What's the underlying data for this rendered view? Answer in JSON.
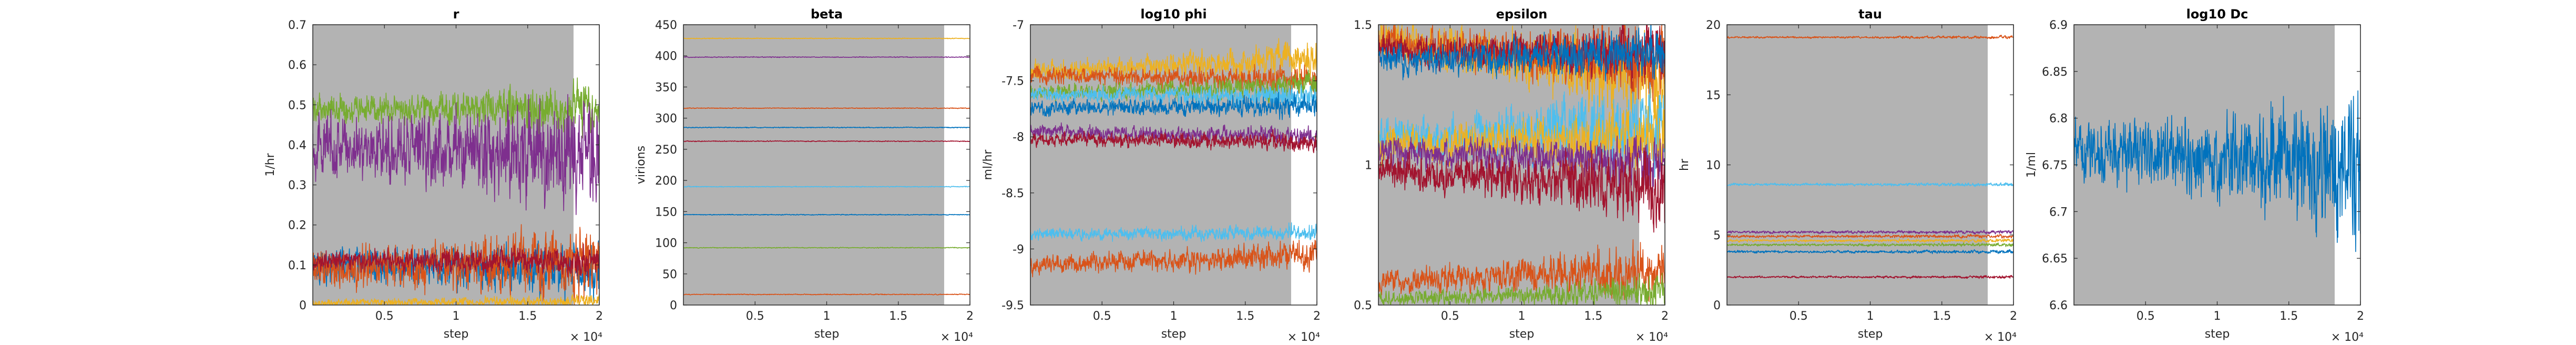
{
  "colors": {
    "shade": "#b3b3b3",
    "palette": [
      "#0072bd",
      "#d95319",
      "#edb120",
      "#7e2f8e",
      "#77ac30",
      "#4dbeee",
      "#a2142f"
    ]
  },
  "chart_data": [
    {
      "type": "line",
      "title": "r",
      "xlabel": "step",
      "ylabel": "1/hr",
      "x_multiplier": "× 10⁴",
      "xlim": [
        0,
        20000
      ],
      "ylim": [
        0,
        0.7
      ],
      "xticks": [
        5000,
        10000,
        15000,
        20000
      ],
      "xtick_labels": [
        "0.5",
        "1",
        "1.5",
        "2"
      ],
      "yticks": [
        0,
        0.1,
        0.2,
        0.3,
        0.4,
        0.5,
        0.6,
        0.7
      ],
      "ytick_labels": [
        "0",
        "0.1",
        "0.2",
        "0.3",
        "0.4",
        "0.5",
        "0.6",
        "0.7"
      ],
      "shaded_region": [
        0,
        18200
      ],
      "series": [
        {
          "color_index": 4,
          "start": 0.49,
          "end": 0.49,
          "noise": 0.02,
          "noise_growth": 2.0
        },
        {
          "color_index": 3,
          "start": 0.4,
          "end": 0.37,
          "noise": 0.045,
          "noise_growth": 2.0
        },
        {
          "color_index": 0,
          "start": 0.1,
          "end": 0.09,
          "noise": 0.025,
          "noise_growth": 1.8
        },
        {
          "color_index": 1,
          "start": 0.09,
          "end": 0.11,
          "noise": 0.03,
          "noise_growth": 2.0
        },
        {
          "color_index": 6,
          "start": 0.11,
          "end": 0.11,
          "noise": 0.015,
          "noise_growth": 1.5
        },
        {
          "color_index": 2,
          "start": 0.005,
          "end": 0.01,
          "noise": 0.006,
          "noise_growth": 1.5
        }
      ]
    },
    {
      "type": "line",
      "title": "beta",
      "xlabel": "step",
      "ylabel": "virions",
      "x_multiplier": "× 10⁴",
      "xlim": [
        0,
        20000
      ],
      "ylim": [
        0,
        450
      ],
      "xticks": [
        5000,
        10000,
        15000,
        20000
      ],
      "xtick_labels": [
        "0.5",
        "1",
        "1.5",
        "2"
      ],
      "yticks": [
        0,
        50,
        100,
        150,
        200,
        250,
        300,
        350,
        400,
        450
      ],
      "ytick_labels": [
        "0",
        "50",
        "100",
        "150",
        "200",
        "250",
        "300",
        "350",
        "400",
        "450"
      ],
      "shaded_region": [
        0,
        18200
      ],
      "series": [
        {
          "color_index": 2,
          "start": 428,
          "end": 428,
          "noise": 0.4,
          "noise_growth": 1.0
        },
        {
          "color_index": 3,
          "start": 398,
          "end": 398,
          "noise": 0.4,
          "noise_growth": 1.0
        },
        {
          "color_index": 1,
          "start": 316,
          "end": 316,
          "noise": 0.4,
          "noise_growth": 1.0
        },
        {
          "color_index": 0,
          "start": 285,
          "end": 285,
          "noise": 0.4,
          "noise_growth": 1.0
        },
        {
          "color_index": 6,
          "start": 263,
          "end": 263,
          "noise": 0.4,
          "noise_growth": 1.0
        },
        {
          "color_index": 5,
          "start": 190,
          "end": 190,
          "noise": 0.4,
          "noise_growth": 1.0
        },
        {
          "color_index": 0,
          "start": 145,
          "end": 145,
          "noise": 0.4,
          "noise_growth": 1.0
        },
        {
          "color_index": 4,
          "start": 92,
          "end": 92,
          "noise": 0.4,
          "noise_growth": 1.0
        },
        {
          "color_index": 1,
          "start": 17,
          "end": 17,
          "noise": 0.4,
          "noise_growth": 1.0
        }
      ]
    },
    {
      "type": "line",
      "title": "log10 phi",
      "xlabel": "step",
      "ylabel": "ml/hr",
      "x_multiplier": "× 10⁴",
      "xlim": [
        0,
        20000
      ],
      "ylim": [
        -9.5,
        -7
      ],
      "xticks": [
        5000,
        10000,
        15000,
        20000
      ],
      "xtick_labels": [
        "0.5",
        "1",
        "1.5",
        "2"
      ],
      "yticks": [
        -9.5,
        -9,
        -8.5,
        -8,
        -7.5,
        -7
      ],
      "ytick_labels": [
        "-9.5",
        "-9",
        "-8.5",
        "-8",
        "-7.5",
        "-7"
      ],
      "shaded_region": [
        0,
        18200
      ],
      "series": [
        {
          "color_index": 2,
          "start": -7.42,
          "end": -7.3,
          "noise": 0.05,
          "noise_growth": 2.0
        },
        {
          "color_index": 1,
          "start": -7.45,
          "end": -7.5,
          "noise": 0.045,
          "noise_growth": 1.8
        },
        {
          "color_index": 4,
          "start": -7.6,
          "end": -7.55,
          "noise": 0.04,
          "noise_growth": 1.8
        },
        {
          "color_index": 5,
          "start": -7.62,
          "end": -7.65,
          "noise": 0.04,
          "noise_growth": 1.6
        },
        {
          "color_index": 0,
          "start": -7.75,
          "end": -7.72,
          "noise": 0.04,
          "noise_growth": 1.6
        },
        {
          "color_index": 3,
          "start": -7.95,
          "end": -8.0,
          "noise": 0.035,
          "noise_growth": 1.5
        },
        {
          "color_index": 6,
          "start": -8.02,
          "end": -8.05,
          "noise": 0.035,
          "noise_growth": 1.5
        },
        {
          "color_index": 5,
          "start": -8.87,
          "end": -8.85,
          "noise": 0.03,
          "noise_growth": 1.5
        },
        {
          "color_index": 1,
          "start": -9.15,
          "end": -9.05,
          "noise": 0.05,
          "noise_growth": 1.6
        }
      ]
    },
    {
      "type": "line",
      "title": "epsilon",
      "xlabel": "step",
      "ylabel": "",
      "x_multiplier": "× 10⁴",
      "xlim": [
        0,
        20000
      ],
      "ylim": [
        0.5,
        1.5
      ],
      "xticks": [
        5000,
        10000,
        15000,
        20000
      ],
      "xtick_labels": [
        "0.5",
        "1",
        "1.5",
        "2"
      ],
      "yticks": [
        0.5,
        1,
        1.5
      ],
      "ytick_labels": [
        "0.5",
        "1",
        "1.5"
      ],
      "shaded_region": [
        0,
        18200
      ],
      "series": [
        {
          "color_index": 2,
          "start": 1.45,
          "end": 1.3,
          "noise": 0.04,
          "noise_growth": 2.5
        },
        {
          "color_index": 1,
          "start": 1.44,
          "end": 1.35,
          "noise": 0.035,
          "noise_growth": 2.5
        },
        {
          "color_index": 6,
          "start": 1.41,
          "end": 1.4,
          "noise": 0.03,
          "noise_growth": 2.0
        },
        {
          "color_index": 0,
          "start": 1.37,
          "end": 1.4,
          "noise": 0.03,
          "noise_growth": 2.0
        },
        {
          "color_index": 5,
          "start": 1.09,
          "end": 1.15,
          "noise": 0.04,
          "noise_growth": 2.5
        },
        {
          "color_index": 2,
          "start": 1.07,
          "end": 1.1,
          "noise": 0.035,
          "noise_growth": 2.5
        },
        {
          "color_index": 3,
          "start": 1.05,
          "end": 1.0,
          "noise": 0.03,
          "noise_growth": 2.0
        },
        {
          "color_index": 6,
          "start": 0.98,
          "end": 0.92,
          "noise": 0.035,
          "noise_growth": 2.5
        },
        {
          "color_index": 1,
          "start": 0.58,
          "end": 0.63,
          "noise": 0.025,
          "noise_growth": 2.5
        },
        {
          "color_index": 4,
          "start": 0.52,
          "end": 0.55,
          "noise": 0.015,
          "noise_growth": 2.5
        }
      ]
    },
    {
      "type": "line",
      "title": "tau",
      "xlabel": "step",
      "ylabel": "hr",
      "x_multiplier": "× 10⁴",
      "xlim": [
        0,
        20000
      ],
      "ylim": [
        0,
        20
      ],
      "xticks": [
        5000,
        10000,
        15000,
        20000
      ],
      "xtick_labels": [
        "0.5",
        "1",
        "1.5",
        "2"
      ],
      "yticks": [
        0,
        5,
        10,
        15,
        20
      ],
      "ytick_labels": [
        "0",
        "5",
        "10",
        "15",
        "20"
      ],
      "shaded_region": [
        0,
        18200
      ],
      "series": [
        {
          "color_index": 1,
          "start": 19.1,
          "end": 19.1,
          "noise": 0.04,
          "noise_growth": 1.5
        },
        {
          "color_index": 5,
          "start": 8.6,
          "end": 8.6,
          "noise": 0.05,
          "noise_growth": 1.5
        },
        {
          "color_index": 3,
          "start": 5.2,
          "end": 5.2,
          "noise": 0.05,
          "noise_growth": 1.5
        },
        {
          "color_index": 1,
          "start": 4.9,
          "end": 4.9,
          "noise": 0.05,
          "noise_growth": 1.5
        },
        {
          "color_index": 2,
          "start": 4.6,
          "end": 4.6,
          "noise": 0.05,
          "noise_growth": 1.5
        },
        {
          "color_index": 4,
          "start": 4.3,
          "end": 4.3,
          "noise": 0.05,
          "noise_growth": 1.5
        },
        {
          "color_index": 0,
          "start": 3.8,
          "end": 3.8,
          "noise": 0.05,
          "noise_growth": 1.5
        },
        {
          "color_index": 6,
          "start": 2.0,
          "end": 2.0,
          "noise": 0.04,
          "noise_growth": 1.5
        }
      ]
    },
    {
      "type": "line",
      "title": "log10 Dc",
      "xlabel": "step",
      "ylabel": "1/ml",
      "x_multiplier": "× 10⁴",
      "xlim": [
        0,
        20000
      ],
      "ylim": [
        6.6,
        6.9
      ],
      "xticks": [
        5000,
        10000,
        15000,
        20000
      ],
      "xtick_labels": [
        "0.5",
        "1",
        "1.5",
        "2"
      ],
      "yticks": [
        6.6,
        6.65,
        6.7,
        6.75,
        6.8,
        6.85,
        6.9
      ],
      "ytick_labels": [
        "6.6",
        "6.65",
        "6.7",
        "6.75",
        "6.8",
        "6.85",
        "6.9"
      ],
      "shaded_region": [
        0,
        18200
      ],
      "series": [
        {
          "color_index": 0,
          "start": 6.765,
          "end": 6.75,
          "noise": 0.02,
          "noise_growth": 2.5
        }
      ]
    }
  ]
}
